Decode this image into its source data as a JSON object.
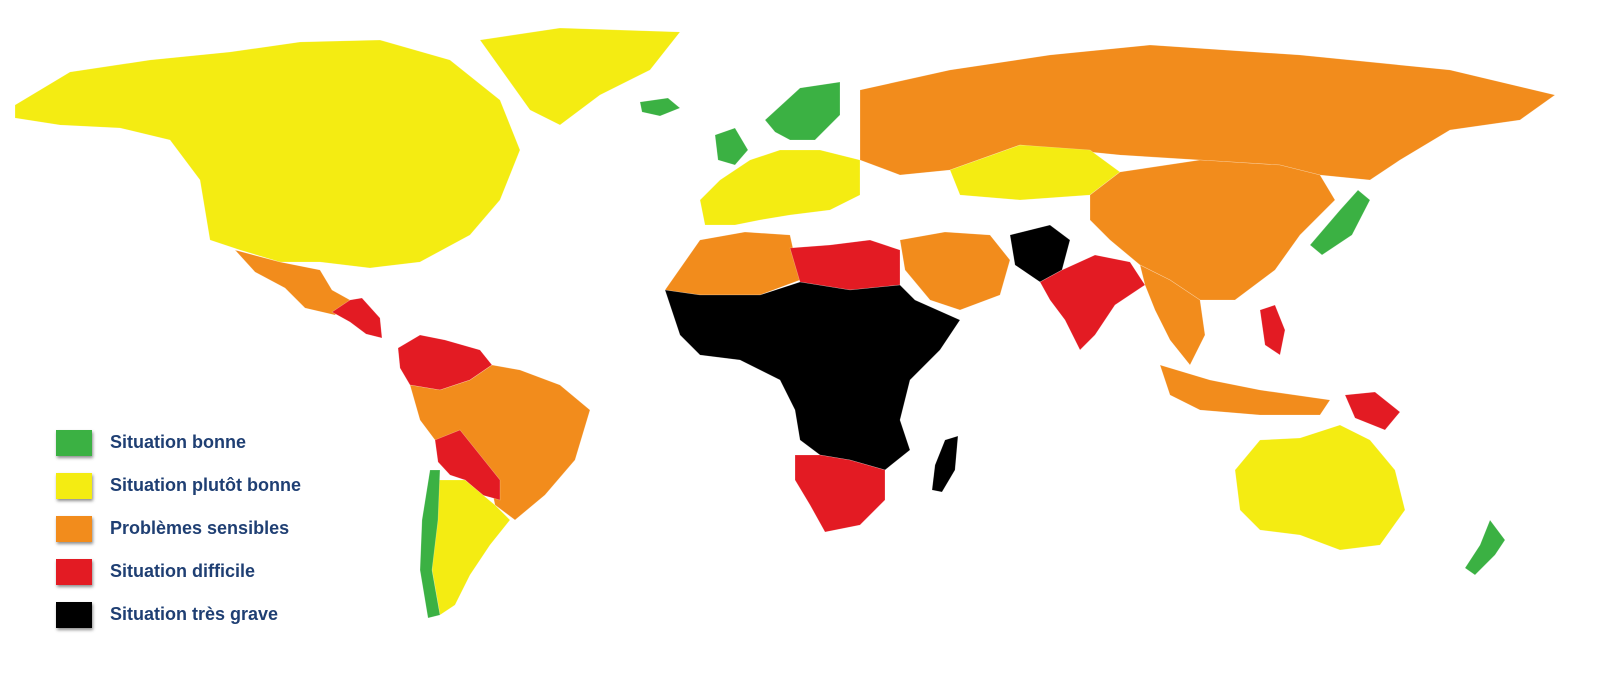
{
  "colors": {
    "bonne": "#3bb143",
    "plutot_bonne": "#f4ec12",
    "sensibles": "#f28c1c",
    "difficile": "#e31b23",
    "tres_grave": "#000000",
    "legend_text": "#1f3f73"
  },
  "legend": [
    {
      "label": "Situation bonne",
      "color": "#3bb143"
    },
    {
      "label": "Situation plutôt bonne",
      "color": "#f4ec12"
    },
    {
      "label": "Problèmes sensibles",
      "color": "#f28c1c"
    },
    {
      "label": "Situation difficile",
      "color": "#e31b23"
    },
    {
      "label": "Situation très grave",
      "color": "#000000"
    }
  ],
  "regions": {
    "north_america": "plutot_bonne",
    "greenland": "plutot_bonne",
    "mexico": "sensibles",
    "central_america": "difficile",
    "colombia_venezuela": "difficile",
    "brazil": "sensibles",
    "bolivia_paraguay": "difficile",
    "argentina": "plutot_bonne",
    "chile": "bonne",
    "iceland": "bonne",
    "scandinavia": "bonne",
    "western_europe": "plutot_bonne",
    "russia": "sensibles",
    "kazakhstan": "plutot_bonne",
    "china": "sensibles",
    "japan": "bonne",
    "north_africa": "sensibles",
    "libya_egypt": "difficile",
    "sahel_central_africa": "tres_grave",
    "southern_africa": "difficile",
    "madagascar": "tres_grave",
    "middle_east": "sensibles",
    "afghanistan_pakistan": "tres_grave",
    "india": "difficile",
    "southeast_asia": "sensibles",
    "philippines": "difficile",
    "indonesia": "sensibles",
    "papua": "difficile",
    "australia": "plutot_bonne",
    "new_zealand": "bonne"
  }
}
